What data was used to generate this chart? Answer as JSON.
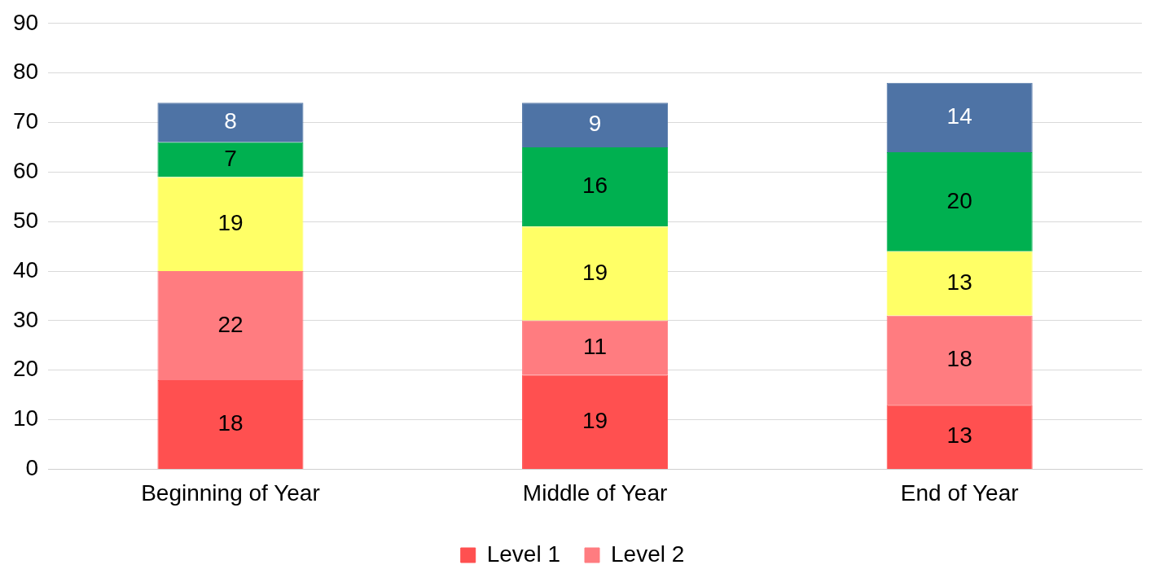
{
  "chart_data": {
    "type": "bar",
    "stacked": true,
    "categories": [
      "Beginning of Year",
      "Middle of Year",
      "End of Year"
    ],
    "series": [
      {
        "name": "Level 1",
        "color": "#ff5050",
        "values": [
          18,
          19,
          13
        ]
      },
      {
        "name": "Level 2",
        "color": "#ff7c80",
        "values": [
          22,
          11,
          18
        ]
      },
      {
        "color": "#ffff66",
        "values": [
          19,
          19,
          13
        ]
      },
      {
        "color": "#00b050",
        "values": [
          7,
          16,
          20
        ]
      },
      {
        "color": "#4e73a5",
        "values": [
          8,
          9,
          14
        ]
      }
    ],
    "ylim": [
      0,
      90
    ],
    "yticks": [
      0,
      10,
      20,
      30,
      40,
      50,
      60,
      70,
      80,
      90
    ],
    "grid": "y",
    "legend": "bottom",
    "data_labels": true
  }
}
